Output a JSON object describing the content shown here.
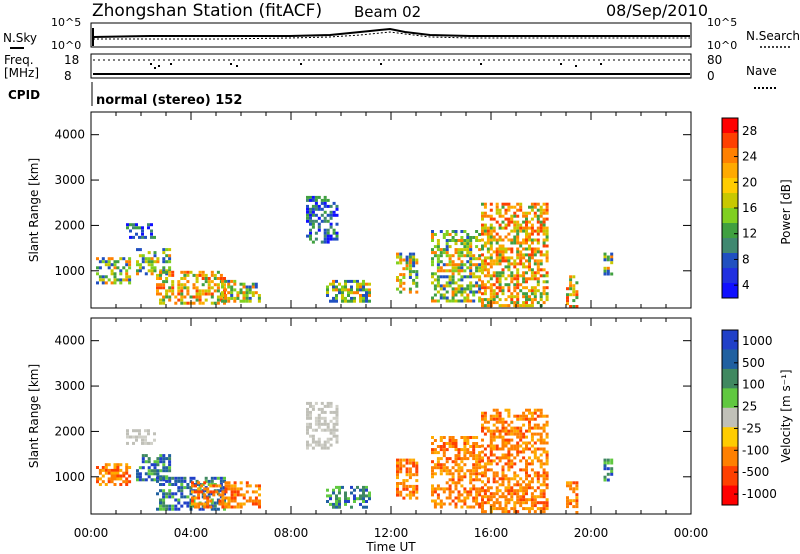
{
  "header": {
    "title": "Zhongshan Station (fitACF)",
    "beam": "Beam 02",
    "date": "08/Sep/2010"
  },
  "top_panels": {
    "nsky_label": "N.Sky",
    "nsky_ticks": [
      "10^5",
      "10^0"
    ],
    "nsearch_label": "N.Search",
    "nsearch_ticks": [
      "10^5",
      "10^0"
    ],
    "freq_label": "Freq.",
    "freq_unit": "[MHz]",
    "freq_ticks": [
      "18",
      "8"
    ],
    "nave_label": "Nave",
    "nave_ticks": [
      "80",
      "0"
    ],
    "cpid_label": "CPID",
    "cpid_text": "normal (stereo) 152"
  },
  "panels": {
    "ylabel": "Slant Range [km]",
    "yticks": [
      "4000",
      "3000",
      "2000",
      "1000"
    ],
    "xticks": [
      "00:00",
      "04:00",
      "08:00",
      "12:00",
      "16:00",
      "20:00",
      "00:00"
    ],
    "xlabel": "Time UT"
  },
  "colorbars": {
    "power": {
      "label": "Power [dB]",
      "ticks": [
        "28",
        "24",
        "20",
        "16",
        "12",
        "8",
        "4"
      ]
    },
    "velocity": {
      "label": "Velocity [m s⁻¹]",
      "ticks": [
        "1000",
        "500",
        "100",
        "25",
        "-25",
        "-100",
        "-500",
        "-1000"
      ]
    }
  },
  "colors": {
    "power_scale": [
      "#ff0000",
      "#ff4000",
      "#ff8000",
      "#ffaa00",
      "#ffcc00",
      "#c8c800",
      "#80d020",
      "#40a040",
      "#408870",
      "#2050c0",
      "#2030e0",
      "#1010ff"
    ],
    "velocity_scale": [
      "#2040c8",
      "#2060a0",
      "#408860",
      "#60c840",
      "#c0c0b8",
      "#ffcc00",
      "#ff8000",
      "#ff4000",
      "#ff0000"
    ]
  },
  "chart_data": [
    {
      "type": "heatmap",
      "name": "Power",
      "x_unit": "hours UT",
      "y_unit": "km",
      "xlim": [
        0,
        24
      ],
      "ylim": [
        180,
        4500
      ],
      "patches": [
        {
          "t": [
            0.2,
            1.6
          ],
          "r": [
            700,
            1300
          ],
          "level": "mid"
        },
        {
          "t": [
            1.4,
            2.6
          ],
          "r": [
            1700,
            2050
          ],
          "level": "low"
        },
        {
          "t": [
            1.8,
            3.2
          ],
          "r": [
            900,
            1500
          ],
          "level": "mid"
        },
        {
          "t": [
            2.6,
            5.4
          ],
          "r": [
            250,
            1000
          ],
          "level": "high"
        },
        {
          "t": [
            5.2,
            6.8
          ],
          "r": [
            300,
            800
          ],
          "level": "mid"
        },
        {
          "t": [
            8.6,
            9.9
          ],
          "r": [
            1600,
            2650
          ],
          "level": "low"
        },
        {
          "t": [
            9.4,
            11.2
          ],
          "r": [
            300,
            800
          ],
          "level": "mid"
        },
        {
          "t": [
            12.2,
            13.1
          ],
          "r": [
            500,
            1400
          ],
          "level": "mid"
        },
        {
          "t": [
            13.6,
            15.6
          ],
          "r": [
            300,
            1900
          ],
          "level": "mid"
        },
        {
          "t": [
            15.6,
            18.3
          ],
          "r": [
            200,
            2500
          ],
          "level": "high"
        },
        {
          "t": [
            19.0,
            19.5
          ],
          "r": [
            180,
            900
          ],
          "level": "high"
        },
        {
          "t": [
            20.5,
            20.9
          ],
          "r": [
            900,
            1400
          ],
          "level": "mid"
        }
      ]
    },
    {
      "type": "heatmap",
      "name": "Velocity",
      "x_unit": "hours UT",
      "y_unit": "km",
      "xlim": [
        0,
        24
      ],
      "ylim": [
        180,
        4500
      ],
      "patches": [
        {
          "t": [
            0.2,
            1.6
          ],
          "r": [
            800,
            1300
          ],
          "level": "neg"
        },
        {
          "t": [
            1.4,
            2.6
          ],
          "r": [
            1700,
            2050
          ],
          "level": "zero"
        },
        {
          "t": [
            1.8,
            3.2
          ],
          "r": [
            900,
            1500
          ],
          "level": "pos"
        },
        {
          "t": [
            2.6,
            5.4
          ],
          "r": [
            250,
            1000
          ],
          "level": "pos"
        },
        {
          "t": [
            4.0,
            6.8
          ],
          "r": [
            300,
            900
          ],
          "level": "neg"
        },
        {
          "t": [
            8.6,
            9.9
          ],
          "r": [
            1600,
            2650
          ],
          "level": "zero"
        },
        {
          "t": [
            9.4,
            11.2
          ],
          "r": [
            300,
            800
          ],
          "level": "pos"
        },
        {
          "t": [
            12.2,
            13.1
          ],
          "r": [
            500,
            1400
          ],
          "level": "neg"
        },
        {
          "t": [
            13.6,
            15.6
          ],
          "r": [
            300,
            1900
          ],
          "level": "neg"
        },
        {
          "t": [
            15.6,
            18.3
          ],
          "r": [
            200,
            2500
          ],
          "level": "neg"
        },
        {
          "t": [
            19.0,
            19.5
          ],
          "r": [
            180,
            900
          ],
          "level": "neg"
        },
        {
          "t": [
            20.5,
            20.9
          ],
          "r": [
            900,
            1400
          ],
          "level": "pos"
        }
      ]
    }
  ]
}
